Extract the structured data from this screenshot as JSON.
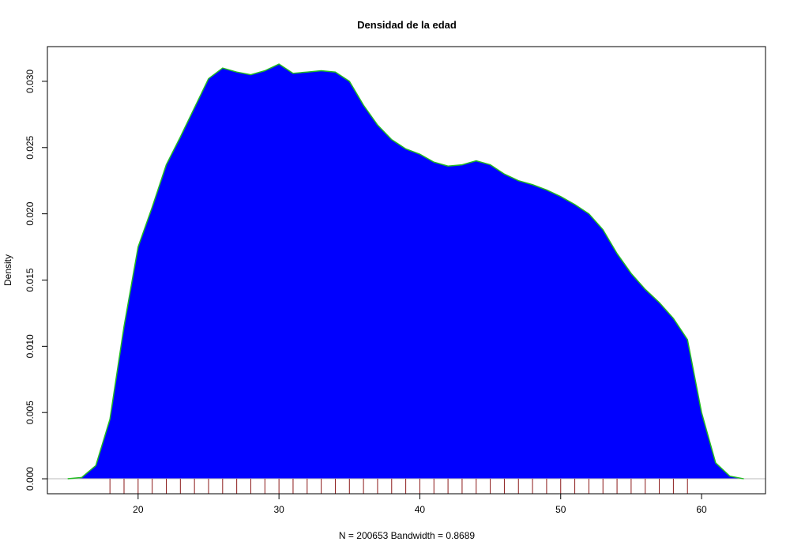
{
  "chart_data": {
    "type": "density",
    "title": "Densidad de la edad",
    "x_label": "N = 200653   Bandwidth = 0.8689",
    "y_label": "Density",
    "x": [
      15,
      16,
      17,
      18,
      19,
      20,
      21,
      22,
      23,
      24,
      25,
      26,
      27,
      28,
      29,
      30,
      31,
      32,
      33,
      34,
      35,
      36,
      37,
      38,
      39,
      40,
      41,
      42,
      43,
      44,
      45,
      46,
      47,
      48,
      49,
      50,
      51,
      52,
      53,
      54,
      55,
      56,
      57,
      58,
      59,
      60,
      61,
      62,
      63
    ],
    "values": [
      0,
      0.0001,
      0.001,
      0.0045,
      0.0115,
      0.0175,
      0.0205,
      0.0237,
      0.0258,
      0.028,
      0.0302,
      0.031,
      0.0307,
      0.0305,
      0.0308,
      0.0313,
      0.0306,
      0.0307,
      0.0308,
      0.0307,
      0.03,
      0.0282,
      0.0267,
      0.0256,
      0.0249,
      0.0245,
      0.0239,
      0.0236,
      0.0237,
      0.024,
      0.0237,
      0.023,
      0.0225,
      0.0222,
      0.0218,
      0.0213,
      0.0207,
      0.02,
      0.0188,
      0.017,
      0.0155,
      0.0143,
      0.0133,
      0.0121,
      0.0105,
      0.005,
      0.0012,
      0.0002,
      0
    ],
    "fill_color": "#0000ff",
    "line_color": "#22bb22",
    "rug": [
      18,
      19,
      20,
      21,
      22,
      23,
      24,
      25,
      26,
      27,
      28,
      29,
      30,
      31,
      32,
      33,
      34,
      35,
      36,
      37,
      38,
      39,
      40,
      41,
      42,
      43,
      44,
      45,
      46,
      47,
      48,
      49,
      50,
      51,
      52,
      53,
      54,
      55,
      56,
      57,
      58,
      59
    ],
    "rug_color": "#8b1a1a",
    "xlim": [
      13.56,
      64.54
    ],
    "ylim": [
      -0.00113,
      0.03262
    ],
    "xticks": [
      20,
      30,
      40,
      50,
      60
    ],
    "yticks": [
      {
        "value": 0,
        "label": "0.000"
      },
      {
        "value": 0.005,
        "label": "0.005"
      },
      {
        "value": 0.01,
        "label": "0.010"
      },
      {
        "value": 0.015,
        "label": "0.015"
      },
      {
        "value": 0.02,
        "label": "0.020"
      },
      {
        "value": 0.025,
        "label": "0.025"
      },
      {
        "value": 0.03,
        "label": "0.030"
      }
    ]
  }
}
